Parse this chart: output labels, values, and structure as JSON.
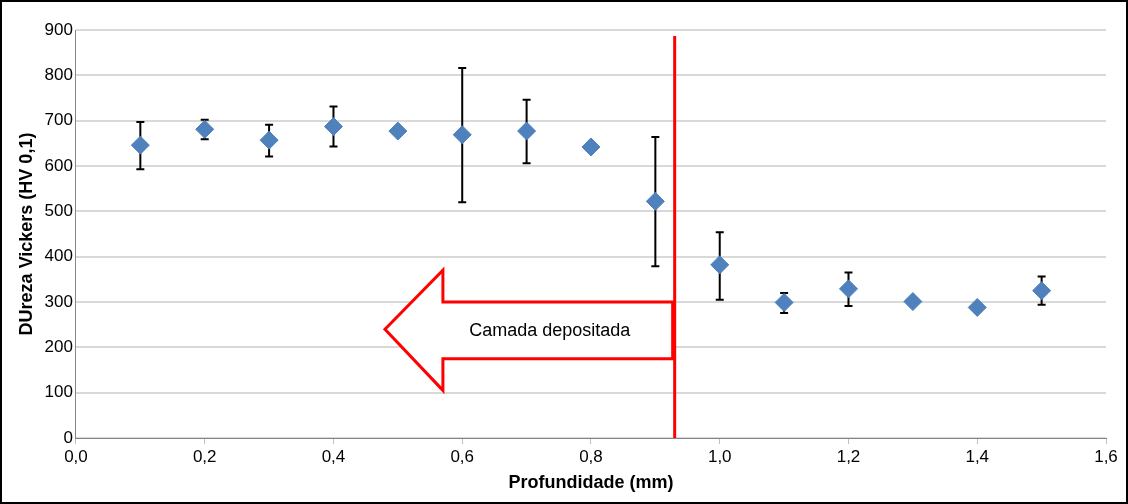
{
  "chart_data": {
    "type": "scatter",
    "xlabel": "Profundidade (mm)",
    "ylabel": "DUreza Vickers (HV 0,1)",
    "x": [
      0.1,
      0.2,
      0.3,
      0.4,
      0.5,
      0.6,
      0.7,
      0.8,
      0.9,
      1.0,
      1.1,
      1.2,
      1.3,
      1.4,
      1.5
    ],
    "series": [
      {
        "color": "#4f81bd",
        "values": [
          646,
          681,
          657,
          687,
          677,
          669,
          677,
          642,
          522,
          382,
          299,
          329,
          301,
          288,
          325
        ],
        "errors": [
          [
            593,
            697
          ],
          [
            659,
            702
          ],
          [
            621,
            691
          ],
          [
            643,
            731
          ],
          null,
          [
            520,
            816
          ],
          [
            606,
            746
          ],
          null,
          [
            379,
            664
          ],
          [
            305,
            454
          ],
          [
            276,
            320
          ],
          [
            291,
            365
          ],
          null,
          null,
          [
            294,
            356
          ]
        ]
      }
    ],
    "marker": "diamond",
    "xlim": [
      0,
      1.6
    ],
    "xticks": [
      {
        "value": 0,
        "label": "0,0"
      },
      {
        "value": 0.2,
        "label": "0,2"
      },
      {
        "value": 0.4,
        "label": "0,4"
      },
      {
        "value": 0.6,
        "label": "0,6"
      },
      {
        "value": 0.8,
        "label": "0,8"
      },
      {
        "value": 1.0,
        "label": "1,0"
      },
      {
        "value": 1.2,
        "label": "1,2"
      },
      {
        "value": 1.4,
        "label": "1,4"
      },
      {
        "value": 1.6,
        "label": "1,6"
      }
    ],
    "ylim": [
      0,
      900
    ],
    "yticks": [
      0,
      100,
      200,
      300,
      400,
      500,
      600,
      700,
      800,
      900
    ],
    "grid": "y",
    "ref_lines": [
      {
        "axis": "x",
        "value": 0.93,
        "color": "#ff0000"
      }
    ],
    "annotations": [
      "Camada depositada"
    ]
  }
}
